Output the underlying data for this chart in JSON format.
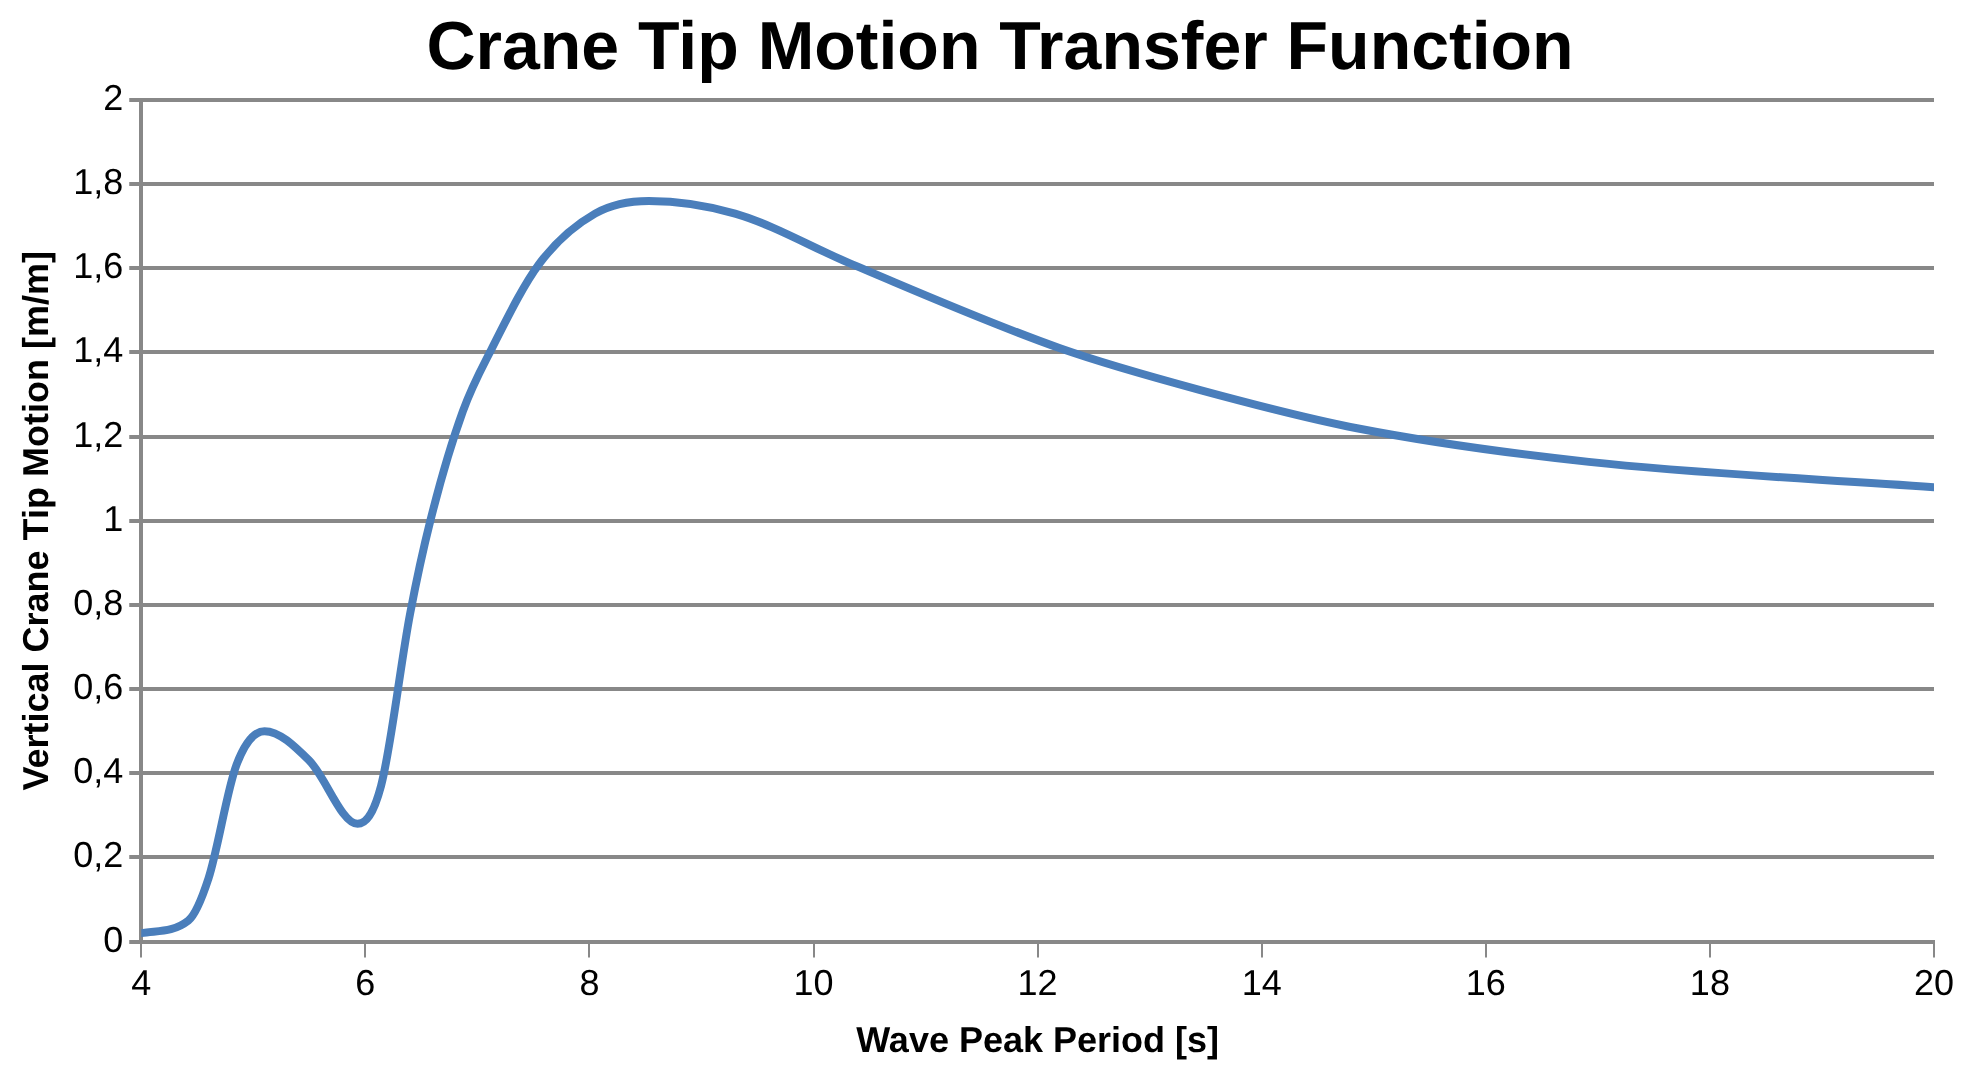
{
  "chart_data": {
    "type": "line",
    "title": "Crane Tip Motion Transfer Function",
    "xlabel": "Wave Peak Period [s]",
    "ylabel": "Vertical Crane Tip Motion [m/m]",
    "x": [
      4,
      4.42,
      4.6,
      4.85,
      5.1,
      5.5,
      5.93,
      6.14,
      6.4,
      6.58,
      6.87,
      7.13,
      7.55,
      8.05,
      8.53,
      9.3,
      10.34,
      12.2,
      13.46,
      14.85,
      16.92,
      20
    ],
    "series": [
      {
        "color": "#4a7ebb",
        "values": [
          0.02,
          0.05,
          0.15,
          0.42,
          0.5,
          0.43,
          0.28,
          0.37,
          0.78,
          1.0,
          1.26,
          1.41,
          1.61,
          1.73,
          1.76,
          1.73,
          1.61,
          1.41,
          1.31,
          1.22,
          1.14,
          1.08
        ]
      }
    ],
    "xlim": [
      4,
      20
    ],
    "xticks": [
      4,
      6,
      8,
      10,
      12,
      14,
      16,
      18,
      20
    ],
    "ylim": [
      0,
      2
    ],
    "yticks": [
      0,
      {
        "value": 0.2,
        "label": "0,2"
      },
      {
        "value": 0.4,
        "label": "0,4"
      },
      {
        "value": 0.6,
        "label": "0,6"
      },
      {
        "value": 0.8,
        "label": "0,8"
      },
      1,
      {
        "value": 1.2,
        "label": "1,2"
      },
      {
        "value": 1.4,
        "label": "1,4"
      },
      {
        "value": 1.6,
        "label": "1,6"
      },
      {
        "value": 1.8,
        "label": "1,8"
      },
      2
    ],
    "grid": "y",
    "legend": false,
    "marker": "none",
    "line_style": "solid"
  }
}
